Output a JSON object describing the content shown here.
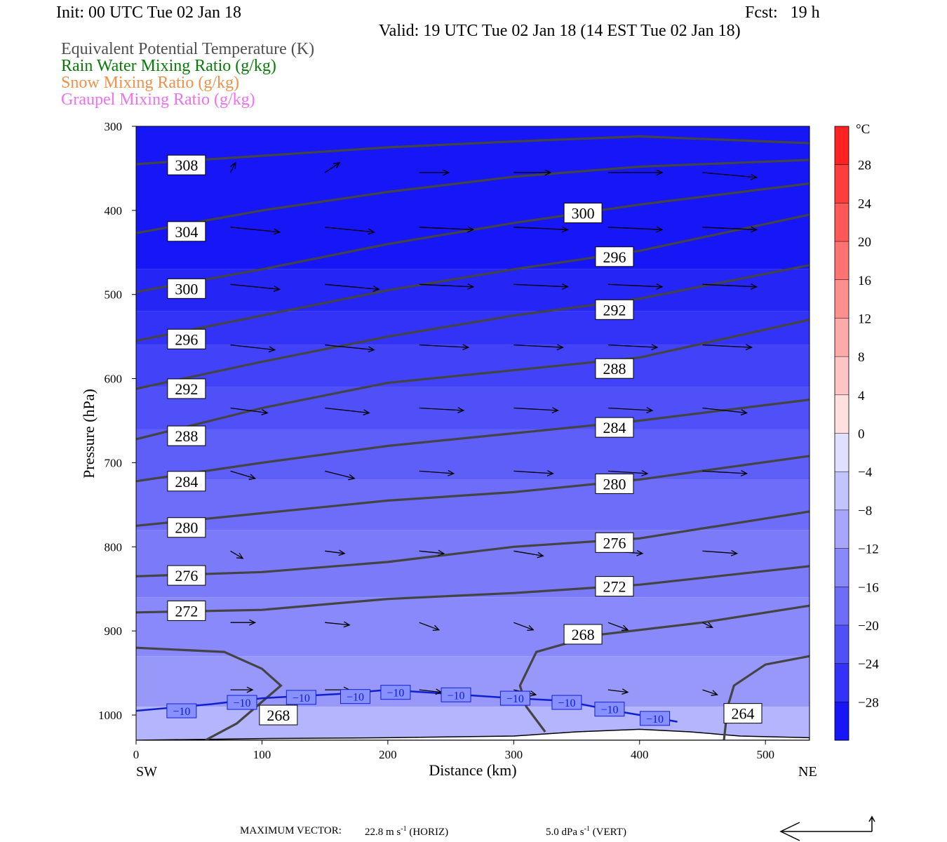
{
  "header": {
    "init": "Init: 00 UTC Tue 02 Jan 18",
    "fcst": "Fcst:   19 h",
    "valid": "Valid: 19 UTC Tue 02 Jan 18 (14 EST Tue 02 Jan 18)"
  },
  "legend_fields": [
    {
      "label": "Equivalent Potential Temperature (K)",
      "color": "#505050"
    },
    {
      "label": "Rain Water Mixing Ratio (g/kg)",
      "color": "#0a7a0a"
    },
    {
      "label": "Snow Mixing Ratio (g/kg)",
      "color": "#f0904a"
    },
    {
      "label": "Graupel Mixing Ratio (g/kg)",
      "color": "#f070f0"
    }
  ],
  "footer": {
    "max_vector_label": "MAXIMUM VECTOR:",
    "horiz_value": "22.8 m s",
    "horiz_unit": "(HORIZ)",
    "vert_value": "5.0 dPa s",
    "vert_unit": "(VERT)",
    "exponent": "-1"
  },
  "chart_data": {
    "type": "cross-section",
    "xlabel": "Distance (km)",
    "ylabel": "Pressure (hPa)",
    "x_ticks": [
      0,
      100,
      200,
      300,
      400,
      500
    ],
    "xlim": [
      0,
      535
    ],
    "y_ticks": [
      300,
      400,
      500,
      600,
      700,
      800,
      900,
      1000
    ],
    "ylim": [
      300,
      1030
    ],
    "left_end_label": "SW",
    "right_end_label": "NE",
    "colorbar": {
      "unit": "°C",
      "tick_labels": [
        "28",
        "24",
        "20",
        "16",
        "12",
        "8",
        "4",
        "0",
        "−4",
        "−8",
        "−12",
        "−16",
        "−20",
        "−24",
        "−28"
      ],
      "tick_values": [
        28,
        24,
        20,
        16,
        12,
        8,
        4,
        0,
        -4,
        -8,
        -12,
        -16,
        -20,
        -24,
        -28
      ],
      "range": [
        -32,
        32
      ],
      "step": 4
    },
    "theta_e_contours": [
      {
        "value": 308,
        "points": [
          [
            0,
            345
          ],
          [
            100,
            335
          ],
          [
            200,
            325
          ],
          [
            300,
            318
          ],
          [
            400,
            312
          ],
          [
            535,
            320
          ]
        ],
        "labels": [
          [
            25,
            346
          ]
        ]
      },
      {
        "value": 304,
        "points": [
          [
            0,
            427
          ],
          [
            100,
            400
          ],
          [
            200,
            378
          ],
          [
            300,
            360
          ],
          [
            400,
            348
          ],
          [
            535,
            340
          ]
        ],
        "labels": [
          [
            25,
            425
          ]
        ]
      },
      {
        "value": 300,
        "points": [
          [
            0,
            497
          ],
          [
            100,
            470
          ],
          [
            200,
            440
          ],
          [
            300,
            415
          ],
          [
            400,
            393
          ],
          [
            535,
            368
          ]
        ],
        "labels": [
          [
            25,
            493
          ],
          [
            340,
            403
          ]
        ]
      },
      {
        "value": 296,
        "points": [
          [
            0,
            555
          ],
          [
            100,
            525
          ],
          [
            200,
            495
          ],
          [
            300,
            470
          ],
          [
            400,
            448
          ],
          [
            535,
            405
          ]
        ],
        "labels": [
          [
            25,
            553
          ],
          [
            365,
            455
          ]
        ]
      },
      {
        "value": 292,
        "points": [
          [
            0,
            612
          ],
          [
            100,
            580
          ],
          [
            200,
            550
          ],
          [
            300,
            525
          ],
          [
            400,
            505
          ],
          [
            535,
            465
          ]
        ],
        "labels": [
          [
            25,
            612
          ],
          [
            365,
            518
          ]
        ]
      },
      {
        "value": 288,
        "points": [
          [
            0,
            672
          ],
          [
            100,
            635
          ],
          [
            200,
            605
          ],
          [
            300,
            590
          ],
          [
            400,
            575
          ],
          [
            535,
            530
          ]
        ],
        "labels": [
          [
            25,
            668
          ],
          [
            365,
            588
          ]
        ]
      },
      {
        "value": 284,
        "points": [
          [
            0,
            722
          ],
          [
            100,
            700
          ],
          [
            200,
            680
          ],
          [
            300,
            665
          ],
          [
            400,
            650
          ],
          [
            535,
            625
          ]
        ],
        "labels": [
          [
            25,
            722
          ],
          [
            365,
            658
          ]
        ]
      },
      {
        "value": 280,
        "points": [
          [
            0,
            775
          ],
          [
            100,
            760
          ],
          [
            200,
            745
          ],
          [
            300,
            735
          ],
          [
            400,
            720
          ],
          [
            535,
            692
          ]
        ],
        "labels": [
          [
            25,
            777
          ],
          [
            365,
            725
          ]
        ]
      },
      {
        "value": 276,
        "points": [
          [
            0,
            835
          ],
          [
            100,
            830
          ],
          [
            200,
            818
          ],
          [
            300,
            800
          ],
          [
            400,
            790
          ],
          [
            535,
            758
          ]
        ],
        "labels": [
          [
            25,
            834
          ],
          [
            365,
            795
          ]
        ]
      },
      {
        "value": 272,
        "points": [
          [
            0,
            878
          ],
          [
            100,
            875
          ],
          [
            200,
            862
          ],
          [
            300,
            855
          ],
          [
            400,
            845
          ],
          [
            535,
            823
          ]
        ],
        "labels": [
          [
            25,
            876
          ],
          [
            365,
            847
          ]
        ]
      },
      {
        "value": 268,
        "points": [
          [
            0,
            920
          ],
          [
            70,
            925
          ],
          [
            100,
            945
          ],
          [
            115,
            965
          ],
          [
            80,
            1010
          ],
          [
            55,
            1030
          ]
        ],
        "labels": [
          [
            98,
            1000
          ]
        ]
      },
      {
        "value": 268,
        "points": [
          [
            325,
            1020
          ],
          [
            310,
            990
          ],
          [
            305,
            965
          ],
          [
            318,
            925
          ],
          [
            365,
            905
          ],
          [
            450,
            890
          ],
          [
            535,
            870
          ]
        ],
        "labels": [
          [
            340,
            904
          ]
        ]
      },
      {
        "value": 264,
        "points": [
          [
            467,
            1030
          ],
          [
            470,
            990
          ],
          [
            475,
            965
          ],
          [
            500,
            940
          ],
          [
            535,
            930
          ]
        ],
        "labels": [
          [
            467,
            998
          ]
        ]
      }
    ],
    "temperature_contours": [
      {
        "value": -10,
        "points": [
          [
            0,
            995
          ],
          [
            60,
            987
          ],
          [
            100,
            980
          ],
          [
            160,
            975
          ],
          [
            200,
            970
          ],
          [
            250,
            975
          ],
          [
            300,
            980
          ],
          [
            340,
            983
          ],
          [
            380,
            995
          ],
          [
            400,
            1000
          ],
          [
            430,
            1008
          ]
        ],
        "labels": [
          [
            25,
            995
          ],
          [
            73,
            985
          ],
          [
            120,
            979
          ],
          [
            163,
            978
          ],
          [
            195,
            973
          ],
          [
            243,
            976
          ],
          [
            290,
            980
          ],
          [
            331,
            985
          ],
          [
            365,
            993
          ],
          [
            401,
            1004
          ]
        ]
      }
    ],
    "wind_vectors": [
      {
        "x": 75,
        "p": 355,
        "u": 2,
        "w": -4
      },
      {
        "x": 150,
        "p": 355,
        "u": 6,
        "w": -4
      },
      {
        "x": 225,
        "p": 355,
        "u": 12,
        "w": 0
      },
      {
        "x": 300,
        "p": 355,
        "u": 15,
        "w": 0
      },
      {
        "x": 375,
        "p": 355,
        "u": 22,
        "w": 0
      },
      {
        "x": 450,
        "p": 355,
        "u": 22,
        "w": 2
      },
      {
        "x": 75,
        "p": 420,
        "u": 20,
        "w": 2
      },
      {
        "x": 150,
        "p": 420,
        "u": 20,
        "w": 2
      },
      {
        "x": 225,
        "p": 420,
        "u": 22,
        "w": 1
      },
      {
        "x": 300,
        "p": 420,
        "u": 22,
        "w": 1
      },
      {
        "x": 375,
        "p": 420,
        "u": 22,
        "w": 1
      },
      {
        "x": 450,
        "p": 420,
        "u": 22,
        "w": 1
      },
      {
        "x": 75,
        "p": 488,
        "u": 20,
        "w": 2
      },
      {
        "x": 150,
        "p": 488,
        "u": 22,
        "w": 2
      },
      {
        "x": 225,
        "p": 488,
        "u": 22,
        "w": 1
      },
      {
        "x": 300,
        "p": 488,
        "u": 22,
        "w": 1
      },
      {
        "x": 375,
        "p": 488,
        "u": 22,
        "w": 1
      },
      {
        "x": 450,
        "p": 488,
        "u": 22,
        "w": 1
      },
      {
        "x": 75,
        "p": 560,
        "u": 18,
        "w": 2
      },
      {
        "x": 150,
        "p": 560,
        "u": 20,
        "w": 2
      },
      {
        "x": 225,
        "p": 560,
        "u": 20,
        "w": 1
      },
      {
        "x": 300,
        "p": 560,
        "u": 20,
        "w": 1
      },
      {
        "x": 375,
        "p": 560,
        "u": 20,
        "w": 1
      },
      {
        "x": 450,
        "p": 560,
        "u": 20,
        "w": 1
      },
      {
        "x": 75,
        "p": 635,
        "u": 15,
        "w": 2
      },
      {
        "x": 150,
        "p": 635,
        "u": 18,
        "w": 2
      },
      {
        "x": 225,
        "p": 635,
        "u": 18,
        "w": 1
      },
      {
        "x": 300,
        "p": 635,
        "u": 18,
        "w": 1
      },
      {
        "x": 375,
        "p": 635,
        "u": 18,
        "w": 1
      },
      {
        "x": 450,
        "p": 635,
        "u": 18,
        "w": 2
      },
      {
        "x": 75,
        "p": 710,
        "u": 10,
        "w": 3
      },
      {
        "x": 150,
        "p": 710,
        "u": 12,
        "w": 3
      },
      {
        "x": 225,
        "p": 710,
        "u": 14,
        "w": 1
      },
      {
        "x": 300,
        "p": 710,
        "u": 16,
        "w": 1
      },
      {
        "x": 375,
        "p": 710,
        "u": 16,
        "w": 1
      },
      {
        "x": 450,
        "p": 710,
        "u": 18,
        "w": 1
      },
      {
        "x": 75,
        "p": 805,
        "u": 5,
        "w": 3
      },
      {
        "x": 150,
        "p": 805,
        "u": 8,
        "w": 1
      },
      {
        "x": 225,
        "p": 805,
        "u": 10,
        "w": 1
      },
      {
        "x": 300,
        "p": 805,
        "u": 12,
        "w": 2
      },
      {
        "x": 375,
        "p": 805,
        "u": 14,
        "w": 1
      },
      {
        "x": 450,
        "p": 805,
        "u": 14,
        "w": 1
      },
      {
        "x": 75,
        "p": 890,
        "u": 10,
        "w": 0
      },
      {
        "x": 150,
        "p": 890,
        "u": 10,
        "w": 1
      },
      {
        "x": 225,
        "p": 890,
        "u": 8,
        "w": 3
      },
      {
        "x": 300,
        "p": 890,
        "u": 8,
        "w": 3
      },
      {
        "x": 375,
        "p": 890,
        "u": 8,
        "w": 3
      },
      {
        "x": 450,
        "p": 890,
        "u": 4,
        "w": 2
      },
      {
        "x": 75,
        "p": 970,
        "u": 9,
        "w": 0
      },
      {
        "x": 150,
        "p": 970,
        "u": 10,
        "w": 0
      },
      {
        "x": 225,
        "p": 970,
        "u": 9,
        "w": 1
      },
      {
        "x": 300,
        "p": 970,
        "u": 9,
        "w": 2
      },
      {
        "x": 375,
        "p": 970,
        "u": 8,
        "w": 1
      },
      {
        "x": 450,
        "p": 970,
        "u": 6,
        "w": 2
      }
    ],
    "terrain": [
      [
        0,
        1030
      ],
      [
        100,
        1028
      ],
      [
        200,
        1027
      ],
      [
        300,
        1025
      ],
      [
        350,
        1020
      ],
      [
        400,
        1017
      ],
      [
        440,
        1020
      ],
      [
        480,
        1025
      ],
      [
        535,
        1027
      ]
    ],
    "colors": {
      "contour": "#444444",
      "temp_contour": "#1020d0",
      "vector": "#000000"
    }
  }
}
